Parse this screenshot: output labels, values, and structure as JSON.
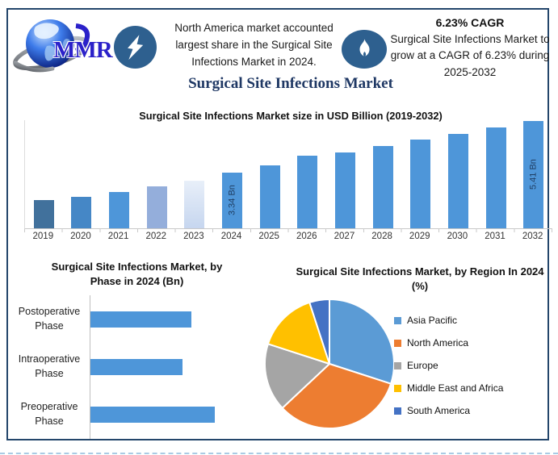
{
  "brand": {
    "logo_text": "MMR"
  },
  "icons": {
    "logo": "globe-with-swoosh",
    "headline_badge": "lightning-bolt",
    "cagr_badge": "flame"
  },
  "header": {
    "callout_left": "North America market accounted largest share in the Surgical Site Infections Market in 2024.",
    "cagr_title": "6.23% CAGR",
    "cagr_text": "Surgical Site Infections Market to grow at a CAGR of 6.23% during 2025-2032",
    "page_title": "Surgical Site Infections Market"
  },
  "colors": {
    "frame_border": "#24466B",
    "badge_blue": "#2E608F",
    "bar_blue": "#4E96D9",
    "title_navy": "#1F3864",
    "data_label_navy": "#1F3E63"
  },
  "chart_data": [
    {
      "id": "market-size",
      "type": "bar",
      "title": "Surgical Site Infections Market size in USD Billion (2019-2032)",
      "ylabel": "USD Billion",
      "categories": [
        "2019",
        "2020",
        "2021",
        "2022",
        "2023",
        "2024",
        "2025",
        "2026",
        "2027",
        "2028",
        "2029",
        "2030",
        "2031",
        "2032"
      ],
      "values": [
        2.24,
        2.38,
        2.57,
        2.81,
        3.01,
        3.34,
        3.63,
        4.03,
        4.16,
        4.41,
        4.68,
        4.89,
        5.14,
        5.41
      ],
      "values_note": "only 2024 and 2032 are labeled in the figure; other values estimated from bar heights",
      "bar_labels": [
        "",
        "",
        "",
        "",
        "",
        "3.34 Bn",
        "",
        "",
        "",
        "",
        "",
        "",
        "",
        "5.41 Bn"
      ],
      "bar_colors": [
        "#41719C",
        "#4587C6",
        "#4E96D9",
        "#94AEDB",
        "#C9D9F0",
        "#4E96D9",
        "#4E96D9",
        "#4E96D9",
        "#4E96D9",
        "#4E96D9",
        "#4E96D9",
        "#4E96D9",
        "#4E96D9",
        "#4E96D9"
      ],
      "gradient_bar": "2023",
      "y_visual_min": 1.12,
      "grid": false
    },
    {
      "id": "by-phase",
      "type": "bar-horizontal",
      "title": "Surgical Site Infections Market, by Phase in 2024 (Bn)",
      "categories": [
        "Postoperative Phase",
        "Intraoperative Phase",
        "Preoperative Phase"
      ],
      "values": [
        1.06,
        0.97,
        1.31
      ],
      "values_note": "estimated from bar lengths; no numeric labels shown",
      "bar_color": "#4E96D9",
      "grid": false
    },
    {
      "id": "by-region",
      "type": "pie",
      "title": "Surgical Site Infections Market, by Region In 2024 (%)",
      "categories": [
        "Asia Pacific",
        "North America",
        "Europe",
        "Middle East and Africa",
        "South America"
      ],
      "values": [
        30,
        33,
        17,
        15,
        5
      ],
      "values_note": "estimated from slice angles; no numeric labels shown",
      "colors": [
        "#5B9BD5",
        "#ED7D31",
        "#A5A5A5",
        "#FFC000",
        "#4472C4"
      ],
      "legend_position": "right",
      "start_angle": "12 o'clock, clockwise"
    }
  ]
}
